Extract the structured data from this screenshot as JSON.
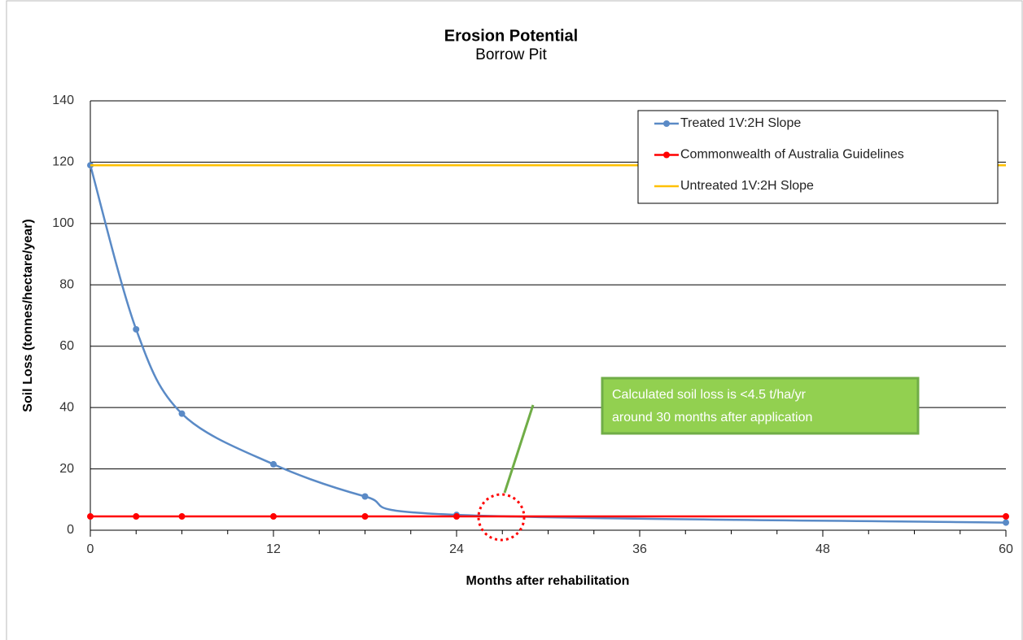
{
  "chart_data": {
    "type": "line",
    "title": "Erosion Potential",
    "subtitle": "Borrow Pit",
    "x_label": "Months after rehabilitation",
    "y_label": "Soil Loss (tonnes/hectare/year)",
    "series": [
      {
        "name": "Treated 1V:2H Slope",
        "color": "#5a8ac6",
        "markers": true,
        "smooth": true,
        "x": [
          0,
          3,
          6,
          12,
          18,
          24,
          60
        ],
        "values": [
          119,
          65.5,
          38,
          21.5,
          11,
          5,
          2.5
        ]
      },
      {
        "name": "Commonwealth of Australia Guidelines",
        "color": "#ff0000",
        "markers": true,
        "smooth": false,
        "x": [
          0,
          3,
          6,
          12,
          18,
          24,
          60
        ],
        "values": [
          4.5,
          4.5,
          4.5,
          4.5,
          4.5,
          4.5,
          4.5
        ]
      },
      {
        "name": "Untreated 1V:2H Slope",
        "color": "#ffc000",
        "markers": false,
        "smooth": false,
        "x": [
          0,
          60
        ],
        "values": [
          119,
          119
        ]
      }
    ],
    "xlim": [
      0,
      60
    ],
    "xticks": [
      0,
      12,
      24,
      36,
      48,
      60
    ],
    "xminor_ticks": [
      3,
      6,
      9,
      15,
      18,
      21,
      27,
      30,
      33,
      39,
      42,
      45,
      51,
      54,
      57
    ],
    "ylim": [
      0,
      140
    ],
    "yticks": [
      0,
      20,
      40,
      60,
      80,
      100,
      120,
      140
    ],
    "grid": true,
    "legend": "top-right",
    "annotation": {
      "lines": [
        "Calculated soil loss is <4.5 t/ha/yr",
        "around 30 months after application"
      ]
    }
  }
}
